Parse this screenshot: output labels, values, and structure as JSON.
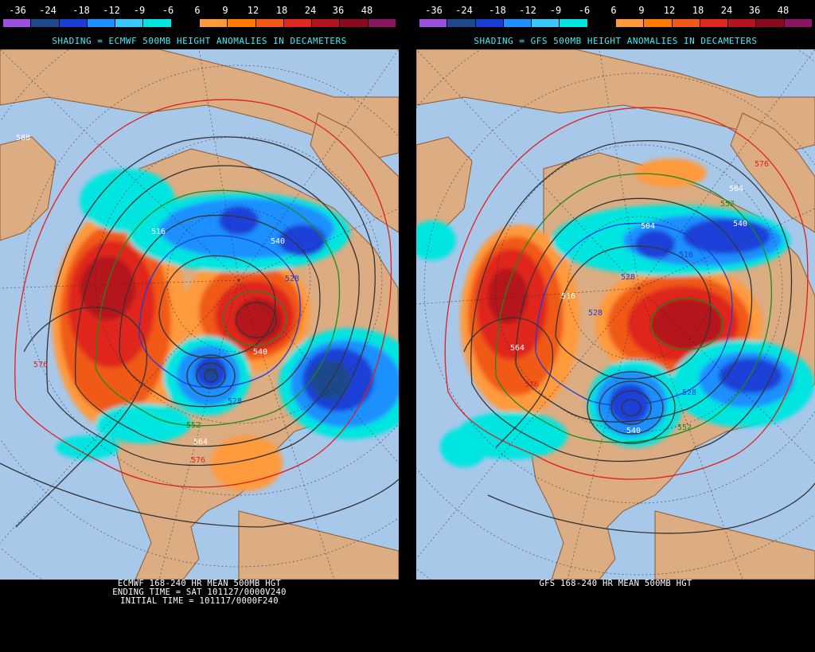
{
  "legend": {
    "labels": [
      "-36",
      "-24",
      "-18",
      "-12",
      "-9",
      "-6",
      "6",
      "9",
      "12",
      "18",
      "24",
      "36",
      "48"
    ],
    "colors": [
      "#9c4fe0",
      "#1e4a8c",
      "#1a3fd8",
      "#1e90ff",
      "#38c8ff",
      "#00e5e0",
      "#000000",
      "#ff9a3c",
      "#ff7a00",
      "#f05a14",
      "#e0281e",
      "#b4141e",
      "#8c0a1e",
      "#8c1464"
    ]
  },
  "panels": [
    {
      "model": "ECMWF",
      "shading_title": "SHADING = ECMWF 500MB HEIGHT ANOMALIES IN DECAMETERS",
      "footer": [
        "ECMWF 168-240 HR MEAN 500MB HGT",
        "ENDING TIME = SAT 101127/0000V240",
        "INITIAL TIME = 101117/0000F240"
      ],
      "contour_labels": [
        "588",
        "516",
        "528",
        "540",
        "528",
        "540",
        "552",
        "564",
        "576",
        "576"
      ]
    },
    {
      "model": "GFS",
      "shading_title": "SHADING = GFS 500MB HEIGHT ANOMALIES IN DECAMETERS",
      "footer": [
        "GFS 168-240 HR MEAN 500MB HGT"
      ],
      "contour_labels": [
        "576",
        "564",
        "552",
        "540",
        "504",
        "516",
        "528",
        "528",
        "540",
        "552",
        "564",
        "528",
        "576",
        "516"
      ]
    }
  ],
  "colors": {
    "ocean": "#a8c8ea",
    "land": "#dcac82",
    "coast": "#8c5a32",
    "background": "#000000",
    "title_cyan": "#3ef0f0"
  }
}
